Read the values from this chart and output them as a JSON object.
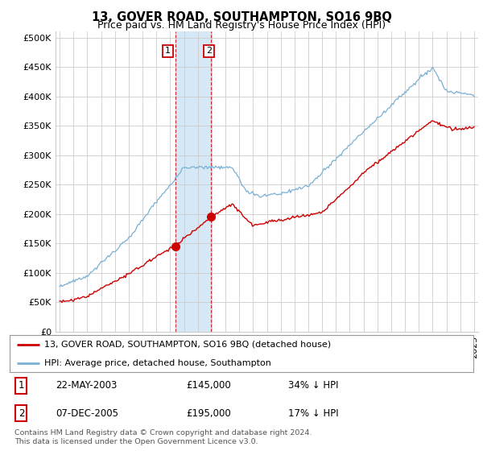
{
  "title": "13, GOVER ROAD, SOUTHAMPTON, SO16 9BQ",
  "subtitle": "Price paid vs. HM Land Registry's House Price Index (HPI)",
  "ylabel_ticks": [
    "£0",
    "£50K",
    "£100K",
    "£150K",
    "£200K",
    "£250K",
    "£300K",
    "£350K",
    "£400K",
    "£450K",
    "£500K"
  ],
  "ytick_values": [
    0,
    50000,
    100000,
    150000,
    200000,
    250000,
    300000,
    350000,
    400000,
    450000,
    500000
  ],
  "xlim_start": 1994.7,
  "xlim_end": 2025.3,
  "ylim": [
    0,
    510000
  ],
  "sale1_x": 2003.38,
  "sale1_y": 145000,
  "sale2_x": 2005.92,
  "sale2_y": 195000,
  "shade_x1": 2003.38,
  "shade_x2": 2005.92,
  "legend_line1": "13, GOVER ROAD, SOUTHAMPTON, SO16 9BQ (detached house)",
  "legend_line2": "HPI: Average price, detached house, Southampton",
  "table_row1": [
    "1",
    "22-MAY-2003",
    "£145,000",
    "34% ↓ HPI"
  ],
  "table_row2": [
    "2",
    "07-DEC-2005",
    "£195,000",
    "17% ↓ HPI"
  ],
  "footer": "Contains HM Land Registry data © Crown copyright and database right 2024.\nThis data is licensed under the Open Government Licence v3.0.",
  "line_color_red": "#cc0000",
  "line_color_blue": "#7ab0d4",
  "shade_color": "#d6e8f5",
  "grid_color": "#cccccc",
  "title_fontsize": 10.5,
  "subtitle_fontsize": 9,
  "tick_fontsize": 8,
  "background": "#ffffff"
}
